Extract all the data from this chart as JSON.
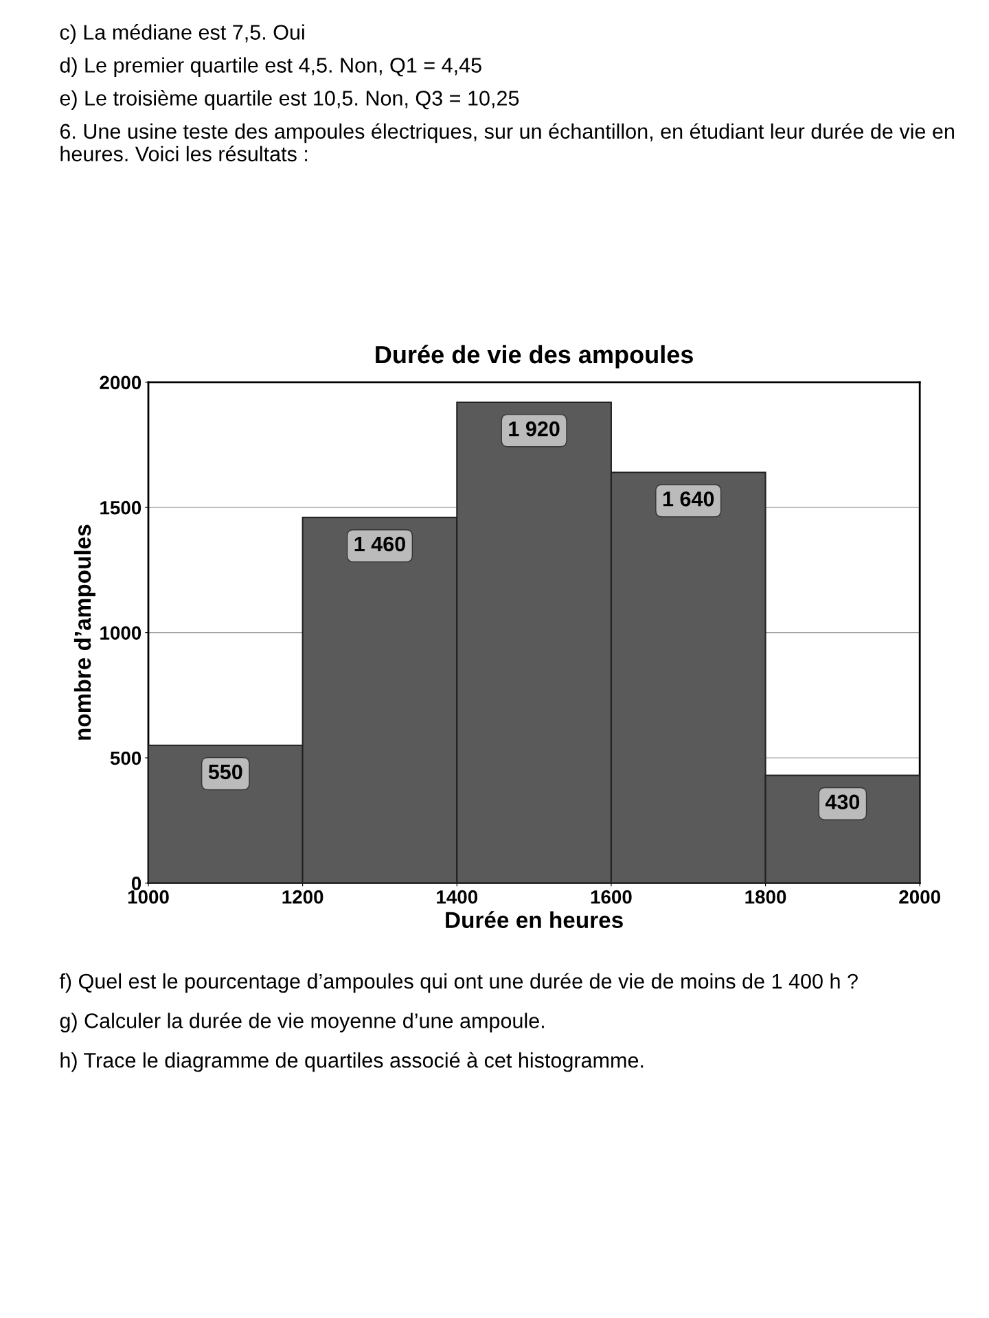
{
  "chart_data": {
    "type": "histogram",
    "title": "Durée de vie des ampoules",
    "subtitle": "6. Une usine teste des ampoules électriques, sur un échantillon, en étudiant leur durée de vie en heures. Voici les résultats :",
    "xlabel": "Durée en heures",
    "ylabel": "nombre d’ampoules",
    "bins": [
      1000,
      1200,
      1400,
      1600,
      1800,
      2000
    ],
    "values": [
      550,
      1460,
      1920,
      1640,
      430
    ],
    "value_labels": [
      "550",
      "1 460",
      "1 920",
      "1 640",
      "430"
    ],
    "color": "#5a5a5a",
    "xlim": [
      1000,
      2000
    ],
    "xticks": [
      1000,
      1200,
      1400,
      1600,
      1800,
      2000
    ],
    "ylim": [
      0,
      2000
    ],
    "yticks": [
      0,
      500,
      1000,
      1500,
      2000
    ],
    "grid": "y",
    "annotations": [
      "c) La médiane est 7,5. Oui",
      "d) Le premier quartile est 4,5. Non, Q1 = 4,45",
      "e) Le troisième quartile est 10,5. Non, Q3 = 10,25",
      "f) Quel est le pourcentage d’ampoules qui ont une durée de vie de moins de 1 400 h ?",
      "g) Calculer la durée de vie moyenne d’une ampoule.",
      "h) Trace le diagramme de quartiles associé à cet histogramme."
    ]
  }
}
